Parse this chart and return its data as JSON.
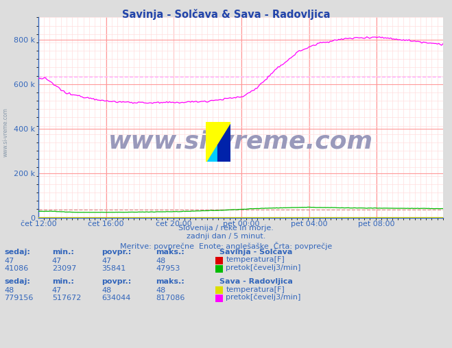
{
  "title": "Savinja - Solčava & Sava - Radovljica",
  "title_color": "#2244aa",
  "bg_color": "#dddddd",
  "plot_bg_color": "#ffffff",
  "grid_color_major": "#ff9999",
  "grid_color_minor": "#ffdddd",
  "tick_color": "#3366bb",
  "subtitle_color": "#3366bb",
  "watermark": "www.si-vreme.com",
  "watermark_color": "#9999bb",
  "side_watermark_color": "#8899aa",
  "savinja_temp_color": "#dd0000",
  "savinja_pretok_color": "#00bb00",
  "sava_temp_color": "#dddd00",
  "sava_pretok_color": "#ff00ff",
  "avg_savinja_pretok_color": "#dd9999",
  "avg_sava_pretok_color": "#ffaaff",
  "savinja_pretok_avg": 35841,
  "sava_pretok_avg": 634044,
  "n_points": 288,
  "ylim": [
    0,
    900000
  ],
  "yticks": [
    0,
    200000,
    400000,
    600000,
    800000
  ],
  "ytick_labels": [
    "0",
    "200 k",
    "400 k",
    "600 k",
    "800 k"
  ],
  "xtick_positions": [
    0,
    48,
    96,
    144,
    192,
    240
  ],
  "xtick_labels": [
    "čet 12:00",
    "čet 16:00",
    "čet 20:00",
    "pet 00:00",
    "pet 04:00",
    "pet 08:00"
  ],
  "subtitle1": "Slovenija / reke in morje.",
  "subtitle2": "zadnji dan / 5 minut.",
  "subtitle3": "Meritve: povprečne  Enote: anglešaške  Črta: povprečje",
  "savinja_sedaj": 47,
  "savinja_min": 47,
  "savinja_povpr": 47,
  "savinja_maks": 48,
  "savinja_pretok_sedaj": 41086,
  "savinja_pretok_min": 23097,
  "savinja_pretok_povpr": 35841,
  "savinja_pretok_maks": 47953,
  "sava_sedaj": 48,
  "sava_min": 47,
  "sava_povpr": 48,
  "sava_maks": 48,
  "sava_pretok_sedaj": 779156,
  "sava_pretok_min": 517672,
  "sava_pretok_povpr": 634044,
  "sava_pretok_maks": 817086
}
